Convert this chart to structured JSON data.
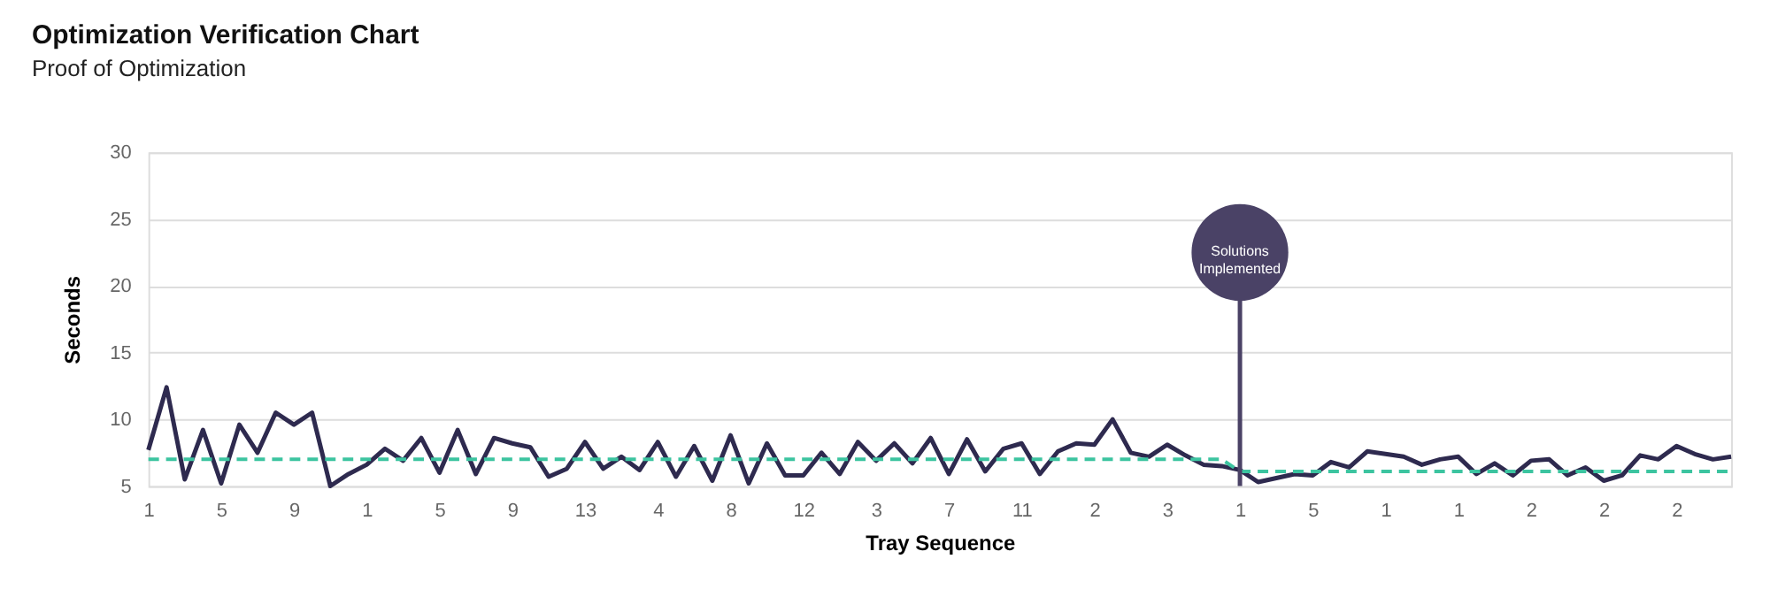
{
  "chart_data": {
    "type": "line",
    "title": "Optimization Verification Chart",
    "subtitle": "Proof of Optimization",
    "xlabel": "Tray Sequence",
    "ylabel": "Seconds",
    "categories": [
      "1",
      null,
      null,
      null,
      "5",
      null,
      null,
      null,
      "9",
      null,
      null,
      null,
      "1",
      null,
      null,
      null,
      "5",
      null,
      null,
      null,
      "9",
      null,
      null,
      null,
      "13",
      null,
      null,
      null,
      "4",
      null,
      null,
      null,
      "8",
      null,
      null,
      null,
      "12",
      null,
      null,
      null,
      "3",
      null,
      null,
      null,
      "7",
      null,
      null,
      null,
      "11",
      null,
      null,
      null,
      "2",
      null,
      null,
      null,
      "3",
      null,
      null,
      null,
      "1",
      null,
      null,
      null,
      "5",
      null,
      null,
      null,
      "1",
      null,
      null,
      null,
      "1",
      null,
      null,
      null,
      "2",
      null,
      null,
      null,
      "2",
      null,
      null,
      null,
      "2",
      null,
      null,
      null
    ],
    "series": [
      {
        "color": "#2e2a4f",
        "line_style": "solid",
        "values": [
          7.7,
          12.4,
          5.5,
          9.2,
          5.2,
          9.6,
          7.5,
          10.5,
          9.6,
          10.5,
          5.0,
          5.9,
          6.6,
          7.8,
          6.9,
          8.6,
          6.0,
          9.2,
          5.9,
          8.6,
          8.2,
          7.9,
          5.7,
          6.3,
          8.3,
          6.3,
          7.2,
          6.2,
          8.3,
          5.7,
          8.0,
          5.4,
          8.8,
          5.2,
          8.2,
          5.8,
          5.8,
          7.5,
          5.9,
          8.3,
          6.9,
          8.2,
          6.7,
          8.6,
          5.9,
          8.5,
          6.1,
          7.8,
          8.2,
          5.9,
          7.6,
          8.2,
          8.1,
          10.0,
          7.5,
          7.2,
          8.1,
          7.3,
          6.6,
          6.5,
          6.2,
          5.3,
          5.6,
          5.9,
          5.8,
          6.8,
          6.4,
          7.6,
          7.4,
          7.2,
          6.6,
          7.0,
          7.2,
          5.9,
          6.7,
          5.8,
          6.9,
          7.0,
          5.8,
          6.4,
          5.4,
          5.8,
          7.3,
          7.0,
          8.0,
          7.4,
          7.0,
          7.2
        ]
      },
      {
        "color": "#3cc4a0",
        "line_style": "dashed",
        "values": [
          7.0,
          7.0,
          7.0,
          7.0,
          7.0,
          7.0,
          7.0,
          7.0,
          7.0,
          7.0,
          7.0,
          7.0,
          7.0,
          7.0,
          7.0,
          7.0,
          7.0,
          7.0,
          7.0,
          7.0,
          7.0,
          7.0,
          7.0,
          7.0,
          7.0,
          7.0,
          7.0,
          7.0,
          7.0,
          7.0,
          7.0,
          7.0,
          7.0,
          7.0,
          7.0,
          7.0,
          7.0,
          7.0,
          7.0,
          7.0,
          7.0,
          7.0,
          7.0,
          7.0,
          7.0,
          7.0,
          7.0,
          7.0,
          7.0,
          7.0,
          7.0,
          7.0,
          7.0,
          7.0,
          7.0,
          7.0,
          7.0,
          7.0,
          7.0,
          7.0,
          6.1,
          6.1,
          6.1,
          6.1,
          6.1,
          6.1,
          6.1,
          6.1,
          6.1,
          6.1,
          6.1,
          6.1,
          6.1,
          6.1,
          6.1,
          6.1,
          6.1,
          6.1,
          6.1,
          6.1,
          6.1,
          6.1,
          6.1,
          6.1,
          6.1,
          6.1,
          6.1,
          6.1
        ]
      }
    ],
    "annotations": [
      "Solutions Implemented"
    ],
    "ylim": [
      5,
      30
    ],
    "yticks": [
      5,
      10,
      15,
      20,
      25,
      30
    ],
    "grid": "y",
    "legend": false,
    "marker": "none"
  }
}
